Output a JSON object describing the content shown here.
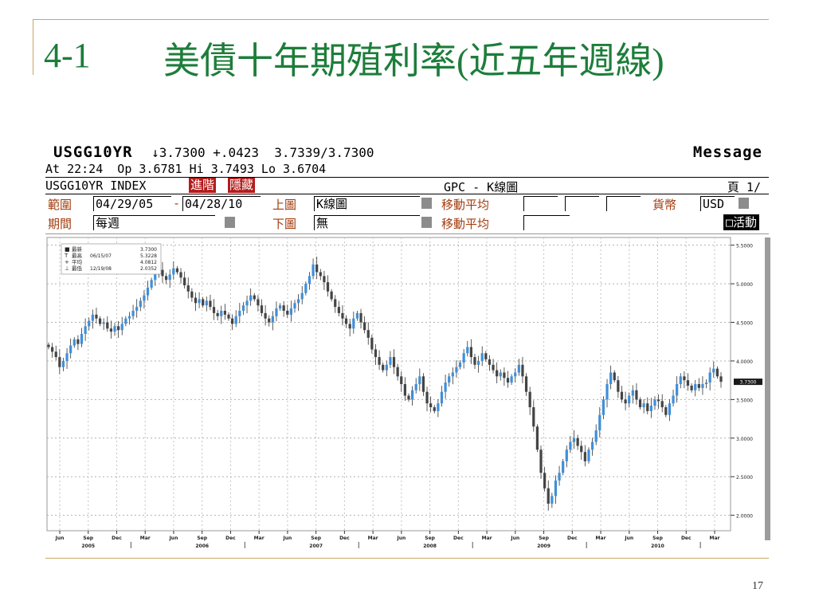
{
  "slide": {
    "number": "4-1",
    "title": "美債十年期殖利率(近五年週線)",
    "page": "17"
  },
  "terminal": {
    "symbol": "USGG10YR",
    "quote": "↓3.7300 +.0423  3.7339/3.7300",
    "message": "Message",
    "at_line": "At 22:24  Op 3.6781 Hi 3.7493 Lo 3.6704",
    "index_name": "USGG10YR INDEX",
    "btn_forward": "進階",
    "btn_hide": "隱藏",
    "chart_name": "GPC - K線圖",
    "page_label": "頁 1/",
    "range_label": "範圍",
    "range_from": "04/29/05",
    "range_to": "04/28/10",
    "upper_label": "上圖",
    "upper_value": "K線圖",
    "ma_label": "移動平均",
    "currency_label": "貨幣",
    "currency_value": "USD",
    "period_label": "期間",
    "period_value": "每週",
    "lower_label": "下圖",
    "lower_value": "無",
    "ma_label2": "移動平均",
    "active_label": "□活動"
  },
  "chart_data": {
    "type": "candlestick",
    "title": "",
    "xlabel": "",
    "ylabel": "",
    "ylim": [
      1.8,
      5.6
    ],
    "y_ticks": [
      "5.5000",
      "5.0000",
      "4.5000",
      "4.0000",
      "3.5000",
      "3.0000",
      "2.5000",
      "2.0000"
    ],
    "y_tick_values": [
      5.5,
      5.0,
      4.5,
      4.0,
      3.5,
      3.0,
      2.5,
      2.0
    ],
    "last_value": "3.7300",
    "last_value_num": 3.73,
    "grid": true,
    "x_month_labels": [
      "Jun",
      "Sep",
      "Dec",
      "Mar",
      "Jun",
      "Sep",
      "Dec",
      "Mar",
      "Jun",
      "Sep",
      "Dec",
      "Mar",
      "Jun",
      "Sep",
      "Dec",
      "Mar",
      "Jun",
      "Sep",
      "Dec",
      "Mar",
      "Jun",
      "Sep",
      "Dec",
      "Mar"
    ],
    "x_year_labels": [
      {
        "label": "2005",
        "month_index": 0
      },
      {
        "label": "2006",
        "month_index": 4
      },
      {
        "label": "2007",
        "month_index": 8
      },
      {
        "label": "2008",
        "month_index": 12
      },
      {
        "label": "2009",
        "month_index": 16
      },
      {
        "label": "2010",
        "month_index": 20
      }
    ],
    "legend": {
      "placement": "top-left",
      "entries": [
        {
          "name": "最新",
          "date": "",
          "value": "3.7300"
        },
        {
          "name": "最高",
          "date": "06/15/07",
          "value": "5.3228"
        },
        {
          "name": "平均",
          "date": "",
          "value": "4.0812"
        },
        {
          "name": "最低",
          "date": "12/19/08",
          "value": "2.0352"
        }
      ]
    },
    "up_color": "#3f8fd9",
    "down_color": "#444444",
    "weekly_close": [
      4.18,
      4.12,
      4.05,
      3.92,
      4.0,
      4.1,
      4.2,
      4.28,
      4.22,
      4.35,
      4.45,
      4.52,
      4.6,
      4.55,
      4.48,
      4.5,
      4.42,
      4.38,
      4.45,
      4.4,
      4.48,
      4.55,
      4.58,
      4.65,
      4.7,
      4.78,
      4.85,
      4.95,
      5.05,
      5.12,
      5.18,
      5.1,
      5.05,
      5.12,
      5.2,
      5.15,
      5.08,
      4.98,
      4.9,
      4.82,
      4.75,
      4.8,
      4.72,
      4.78,
      4.7,
      4.62,
      4.58,
      4.65,
      4.6,
      4.55,
      4.48,
      4.58,
      4.65,
      4.72,
      4.78,
      4.85,
      4.8,
      4.72,
      4.62,
      4.55,
      4.5,
      4.58,
      4.68,
      4.72,
      4.65,
      4.6,
      4.68,
      4.75,
      4.8,
      4.88,
      5.0,
      5.1,
      5.25,
      5.15,
      5.1,
      5.02,
      4.9,
      4.8,
      4.7,
      4.62,
      4.55,
      4.48,
      4.42,
      4.55,
      4.62,
      4.5,
      4.4,
      4.3,
      4.15,
      4.05,
      3.95,
      3.88,
      3.95,
      4.05,
      3.92,
      3.8,
      3.7,
      3.55,
      3.5,
      3.62,
      3.7,
      3.8,
      3.6,
      3.45,
      3.4,
      3.35,
      3.45,
      3.6,
      3.72,
      3.8,
      3.85,
      3.92,
      3.98,
      4.1,
      4.18,
      4.05,
      3.95,
      4.0,
      4.1,
      4.02,
      3.95,
      3.88,
      3.8,
      3.85,
      3.78,
      3.72,
      3.8,
      3.85,
      3.95,
      3.8,
      3.6,
      3.4,
      3.15,
      2.85,
      2.55,
      2.35,
      2.15,
      2.25,
      2.45,
      2.55,
      2.7,
      2.85,
      2.95,
      3.0,
      2.9,
      2.82,
      2.7,
      2.85,
      2.95,
      3.1,
      3.3,
      3.5,
      3.7,
      3.85,
      3.75,
      3.6,
      3.5,
      3.45,
      3.55,
      3.62,
      3.5,
      3.4,
      3.45,
      3.35,
      3.42,
      3.5,
      3.48,
      3.4,
      3.3,
      3.45,
      3.55,
      3.7,
      3.8,
      3.75,
      3.68,
      3.62,
      3.7,
      3.65,
      3.7,
      3.72,
      3.85,
      3.9,
      3.8,
      3.73
    ]
  }
}
